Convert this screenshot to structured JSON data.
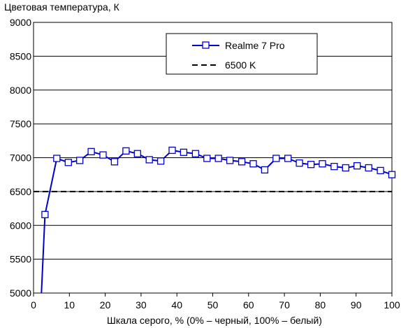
{
  "chart_data": {
    "type": "line",
    "title": "",
    "ylabel": "Цветовая температура, К",
    "xlabel": "Шкала серого, % (0% – черный, 100% – белый)",
    "xlim": [
      0,
      100
    ],
    "ylim": [
      5000,
      9000
    ],
    "x_ticks": [
      0,
      10,
      20,
      30,
      40,
      50,
      60,
      70,
      80,
      90,
      100
    ],
    "y_ticks": [
      5000,
      5500,
      6000,
      6500,
      7000,
      7500,
      8000,
      8500,
      9000
    ],
    "grid": "horizontal",
    "legend_position": "top-right",
    "series": [
      {
        "name": "Realme 7 Pro",
        "color": "#0000cc",
        "marker": "square",
        "x": [
          3.2,
          6.5,
          9.7,
          12.9,
          16.1,
          19.4,
          22.6,
          25.8,
          29.0,
          32.3,
          35.5,
          38.7,
          41.9,
          45.2,
          48.4,
          51.6,
          54.8,
          58.1,
          61.3,
          64.5,
          67.7,
          71.0,
          74.2,
          77.4,
          80.6,
          83.9,
          87.1,
          90.3,
          93.5,
          96.8,
          100.0
        ],
        "y": [
          6160,
          6990,
          6930,
          6960,
          7090,
          7040,
          6940,
          7100,
          7060,
          6970,
          6950,
          7110,
          7080,
          7060,
          6990,
          6990,
          6960,
          6940,
          6910,
          6820,
          6990,
          6990,
          6920,
          6900,
          6910,
          6870,
          6850,
          6880,
          6850,
          6810,
          6750
        ],
        "lead_in": {
          "x": 2.2,
          "y": 5000
        }
      },
      {
        "name": "6500 K",
        "color": "#000000",
        "style": "dashed",
        "x": [
          0,
          100
        ],
        "y": [
          6500,
          6500
        ]
      }
    ]
  }
}
